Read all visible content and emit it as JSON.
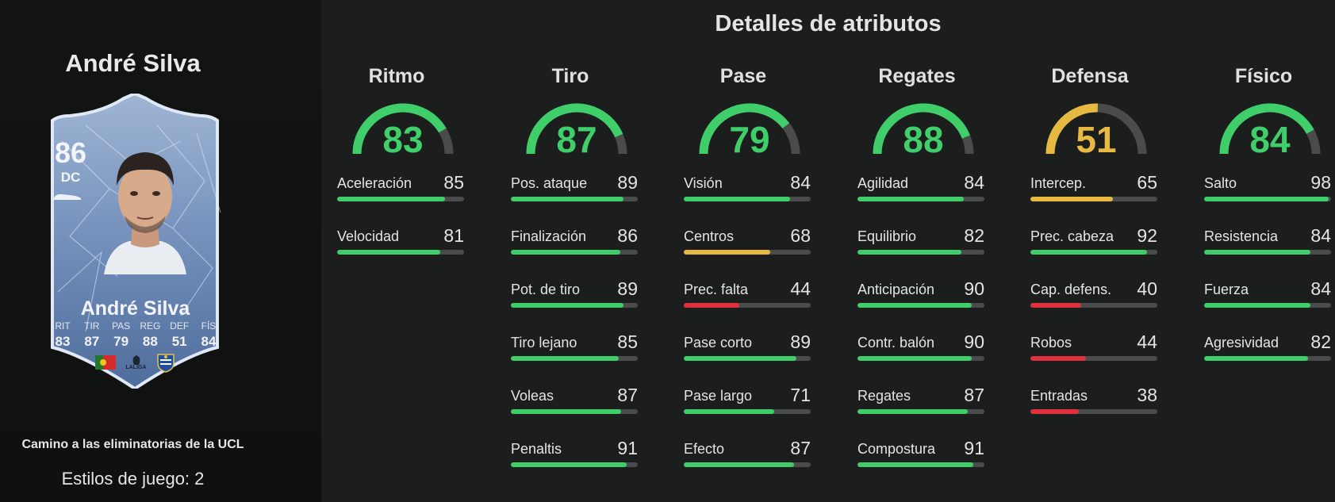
{
  "player": {
    "name": "André Silva",
    "card": {
      "rating": "86",
      "position": "DC",
      "name": "André Silva",
      "stats": [
        {
          "label": "RIT",
          "value": "83"
        },
        {
          "label": "TIR",
          "value": "87"
        },
        {
          "label": "PAS",
          "value": "79"
        },
        {
          "label": "REG",
          "value": "88"
        },
        {
          "label": "DEF",
          "value": "51"
        },
        {
          "label": "FÍS",
          "value": "84"
        }
      ],
      "league_logo_text": "LALIGA"
    },
    "promo": "Camino a las eliminatorias de la UCL",
    "playstyles": "Estilos de juego: 2"
  },
  "colors": {
    "high": "#3fce6a",
    "mid": "#e7b940",
    "low": "#e0303d",
    "track": "#4a4c4b"
  },
  "section_title": "Detalles de atributos",
  "categories": [
    {
      "name": "Ritmo",
      "value": 83,
      "attrs": [
        {
          "name": "Aceleración",
          "value": 85
        },
        {
          "name": "Velocidad",
          "value": 81
        }
      ]
    },
    {
      "name": "Tiro",
      "value": 87,
      "attrs": [
        {
          "name": "Pos. ataque",
          "value": 89
        },
        {
          "name": "Finalización",
          "value": 86
        },
        {
          "name": "Pot. de tiro",
          "value": 89
        },
        {
          "name": "Tiro lejano",
          "value": 85
        },
        {
          "name": "Voleas",
          "value": 87
        },
        {
          "name": "Penaltis",
          "value": 91
        }
      ]
    },
    {
      "name": "Pase",
      "value": 79,
      "attrs": [
        {
          "name": "Visión",
          "value": 84
        },
        {
          "name": "Centros",
          "value": 68
        },
        {
          "name": "Prec. falta",
          "value": 44
        },
        {
          "name": "Pase corto",
          "value": 89
        },
        {
          "name": "Pase largo",
          "value": 71
        },
        {
          "name": "Efecto",
          "value": 87
        }
      ]
    },
    {
      "name": "Regates",
      "value": 88,
      "attrs": [
        {
          "name": "Agilidad",
          "value": 84
        },
        {
          "name": "Equilibrio",
          "value": 82
        },
        {
          "name": "Anticipación",
          "value": 90
        },
        {
          "name": "Contr. balón",
          "value": 90
        },
        {
          "name": "Regates",
          "value": 87
        },
        {
          "name": "Compostura",
          "value": 91
        }
      ]
    },
    {
      "name": "Defensa",
      "value": 51,
      "attrs": [
        {
          "name": "Intercep.",
          "value": 65
        },
        {
          "name": "Prec. cabeza",
          "value": 92
        },
        {
          "name": "Cap. defens.",
          "value": 40
        },
        {
          "name": "Robos",
          "value": 44
        },
        {
          "name": "Entradas",
          "value": 38
        }
      ]
    },
    {
      "name": "Físico",
      "value": 84,
      "attrs": [
        {
          "name": "Salto",
          "value": 98
        },
        {
          "name": "Resistencia",
          "value": 84
        },
        {
          "name": "Fuerza",
          "value": 84
        },
        {
          "name": "Agresividad",
          "value": 82
        }
      ]
    }
  ]
}
